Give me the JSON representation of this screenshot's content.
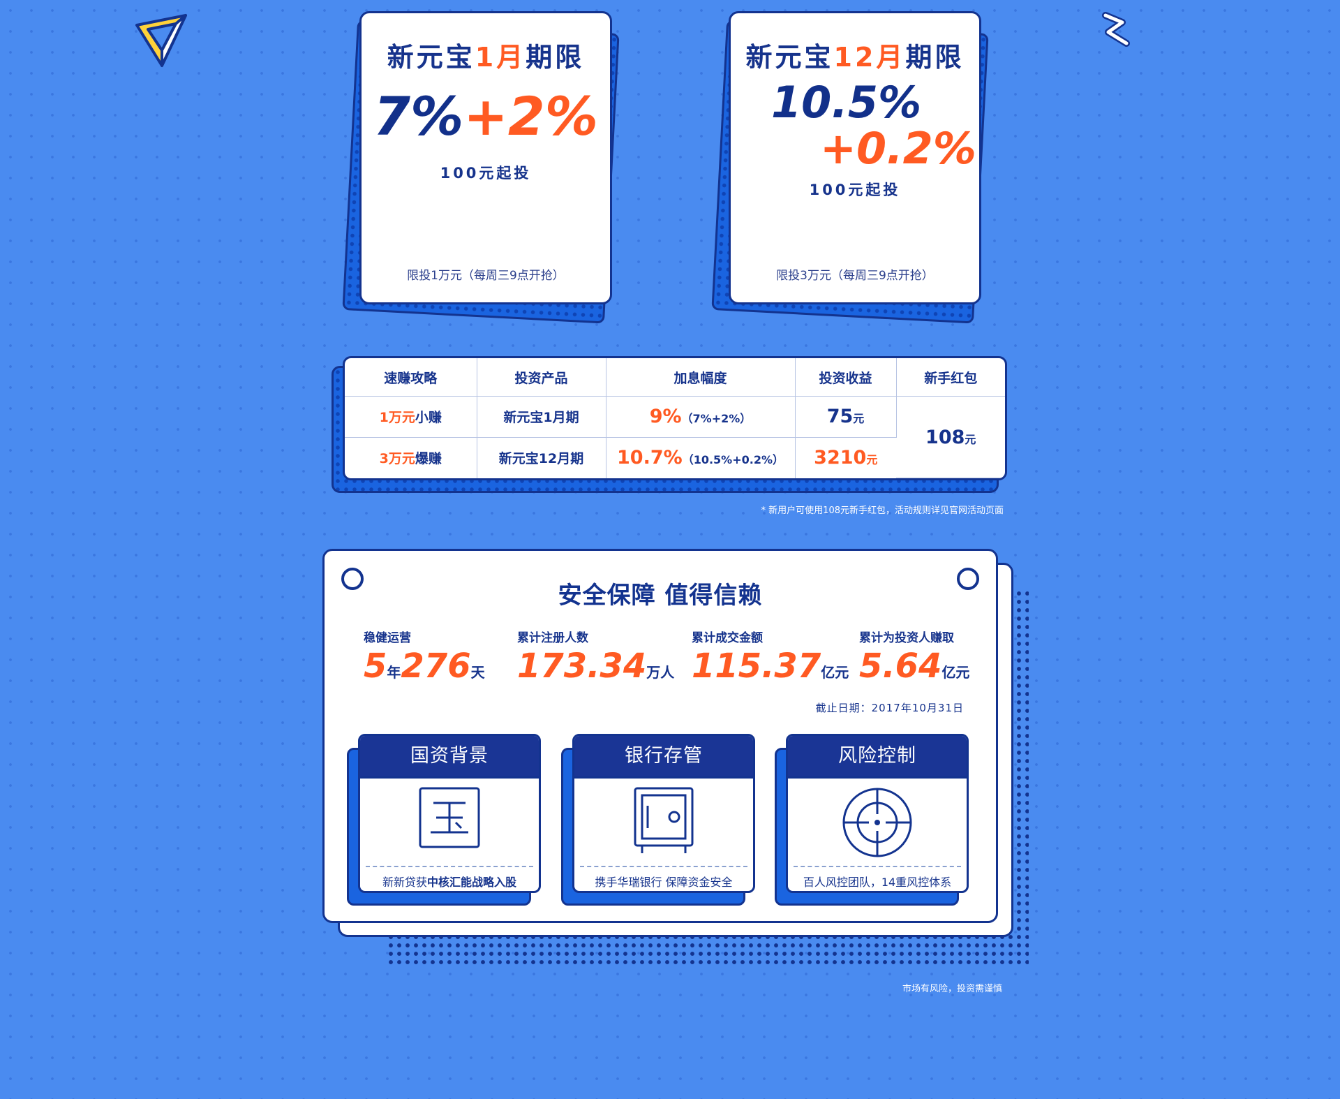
{
  "promos": [
    {
      "title_pre": "新元宝",
      "title_hl": "1月",
      "title_post": "期限",
      "rate_main": "7%",
      "rate_plus": "+2%",
      "min_invest": "100元起投",
      "limit": "限投1万元（每周三9点开抢）"
    },
    {
      "title_pre": "新元宝",
      "title_hl": "12月",
      "title_post": "期限",
      "rate_main": "10.5%",
      "rate_plus": "+0.2%",
      "min_invest": "100元起投",
      "limit": "限投3万元（每周三9点开抢）"
    }
  ],
  "table": {
    "headers": [
      "速赚攻略",
      "投资产品",
      "加息幅度",
      "投资收益",
      "新手红包"
    ],
    "rows": [
      {
        "amount": "1万元",
        "tag": "小赚",
        "product": "新元宝1月期",
        "rate": "9%",
        "rate_detail": "（7%+2%）",
        "income": "75",
        "income_unit": "元"
      },
      {
        "amount": "3万元",
        "tag": "爆赚",
        "product": "新元宝12月期",
        "rate": "10.7%",
        "rate_detail": "（10.5%+0.2%）",
        "income": "3210",
        "income_unit": "元"
      }
    ],
    "redpack": "108",
    "redpack_unit": "元"
  },
  "note_redpack": "* 新用户可使用108元新手红包，活动规则详见官网活动页面",
  "security": {
    "title": "安全保障 值得信赖",
    "stats": [
      {
        "label": "稳健运营",
        "v1": "5",
        "u1": "年",
        "v2": "276",
        "u2": "天"
      },
      {
        "label": "累计注册人数",
        "v1": "173.34",
        "u1": "万人"
      },
      {
        "label": "累计成交金额",
        "v1": "115.37",
        "u1": "亿元"
      },
      {
        "label": "累计为投资人赚取",
        "v1": "5.64",
        "u1": "亿元"
      }
    ],
    "cutoff": "截止日期：2017年10月31日",
    "features": [
      {
        "title": "国资背景",
        "text_pre": "新新贷获",
        "text_bold": "中核汇能战略入股",
        "icon": "jade-icon"
      },
      {
        "title": "银行存管",
        "text_pre": "携手华瑞银行 保障资金安全",
        "text_bold": "",
        "icon": "safe-icon"
      },
      {
        "title": "风险控制",
        "text_pre": "百人风控团队，14重风控体系",
        "text_bold": "",
        "icon": "crosshair-icon"
      }
    ]
  },
  "disclaimer": "市场有风险，投资需谨慎"
}
